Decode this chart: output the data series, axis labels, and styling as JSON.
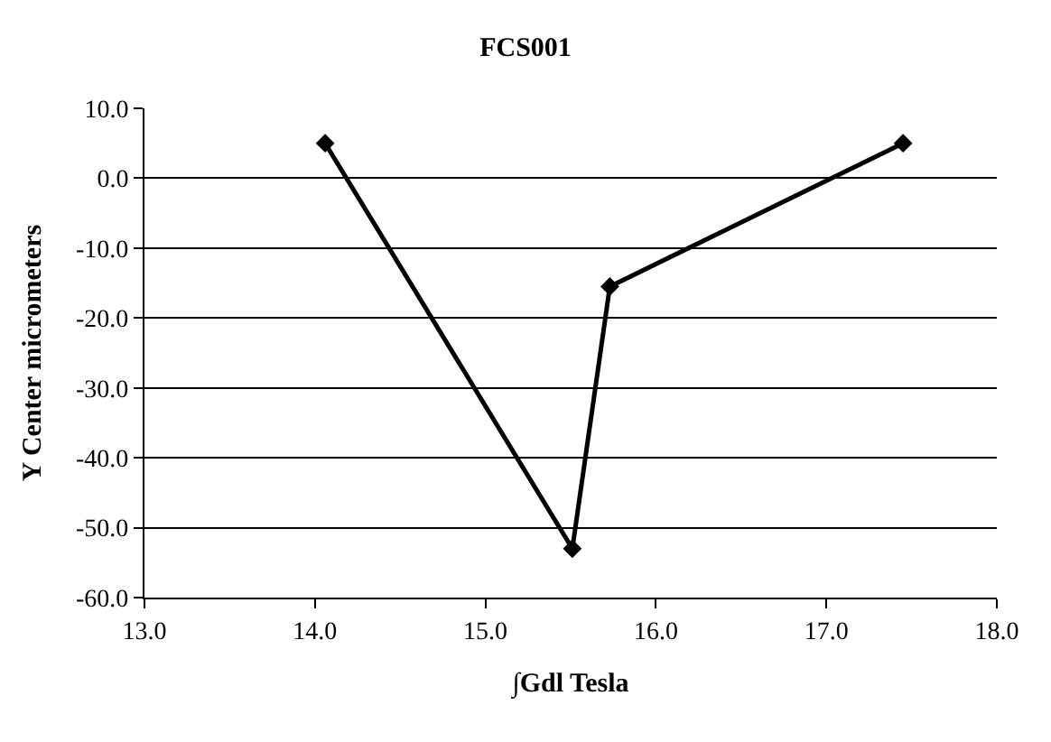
{
  "chart_data": {
    "type": "line",
    "title": "FCS001",
    "xlabel": "∫Gdl Tesla",
    "ylabel": "Y Center micrometers",
    "x": [
      14.06,
      15.51,
      15.73,
      17.45
    ],
    "series": [
      {
        "color": "#000000",
        "values": [
          5.0,
          -53.0,
          -15.5,
          5.0
        ]
      }
    ],
    "xlim": [
      13,
      18
    ],
    "xticks": [
      {
        "value": 13,
        "label": "13.0"
      },
      {
        "value": 14,
        "label": "14.0"
      },
      {
        "value": 15,
        "label": "15.0"
      },
      {
        "value": 16,
        "label": "16.0"
      },
      {
        "value": 17,
        "label": "17.0"
      },
      {
        "value": 18,
        "label": "18.0"
      }
    ],
    "ylim": [
      -60,
      10
    ],
    "yticks": [
      {
        "value": -60,
        "label": "-60.0"
      },
      {
        "value": -50,
        "label": "-50.0"
      },
      {
        "value": -40,
        "label": "-40.0"
      },
      {
        "value": -30,
        "label": "-30.0"
      },
      {
        "value": -20,
        "label": "-20.0"
      },
      {
        "value": -10,
        "label": "-10.0"
      },
      {
        "value": 0,
        "label": "0.0"
      },
      {
        "value": 10,
        "label": "10.0"
      }
    ],
    "grid": "y",
    "marker": "diamond",
    "line_style": "solid"
  }
}
